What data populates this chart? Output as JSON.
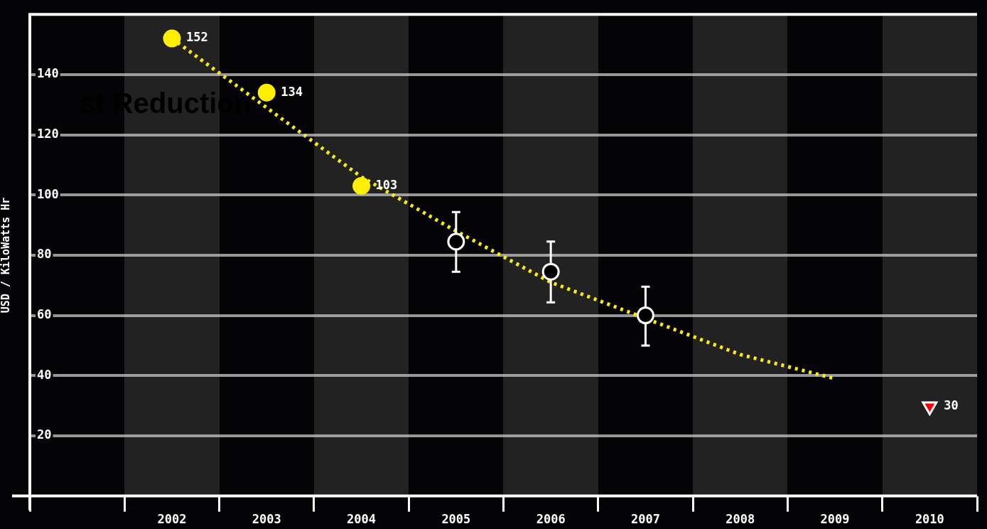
{
  "chart_data": {
    "type": "line",
    "ylabel": "USD / KiloWatts Hr",
    "annotations": [
      "st Reduction"
    ],
    "categories": [
      null,
      "2002",
      "2003",
      "2004",
      "2005",
      "2006",
      "2007",
      "2008",
      "2009",
      "2010"
    ],
    "ylim": [
      0,
      160
    ],
    "yticks": [
      20,
      40,
      60,
      80,
      100,
      120,
      140
    ],
    "grid": "y",
    "legend": false,
    "series": [
      {
        "color": "#ffee00",
        "line_style": "dotted",
        "marker": "none",
        "values": [
          null,
          152,
          129,
          106,
          88,
          71,
          null,
          47,
          39,
          null
        ]
      },
      {
        "type": "scatter",
        "color": "#ffee00",
        "marker": "circle",
        "values": [
          null,
          152,
          134,
          103,
          null,
          null,
          null,
          null,
          null,
          null
        ],
        "value_labels": [
          null,
          "152",
          "134",
          "103",
          null,
          null,
          null,
          null,
          null,
          null
        ]
      },
      {
        "type": "scatter",
        "color": "#ffffff",
        "marker": "circle",
        "values": [
          null,
          null,
          null,
          null,
          84.5,
          74.5,
          60,
          null,
          null,
          null
        ],
        "errors": [
          null,
          null,
          null,
          null,
          [
            74.5,
            94.3
          ],
          [
            64.3,
            84.5
          ],
          [
            50,
            69.5
          ],
          null,
          null,
          null
        ]
      },
      {
        "type": "scatter",
        "color": "#ff0000",
        "marker": "triangle",
        "values": [
          null,
          null,
          null,
          null,
          null,
          null,
          null,
          null,
          null,
          29.8
        ],
        "value_labels": [
          null,
          null,
          null,
          null,
          null,
          null,
          null,
          null,
          null,
          "30"
        ]
      }
    ]
  }
}
